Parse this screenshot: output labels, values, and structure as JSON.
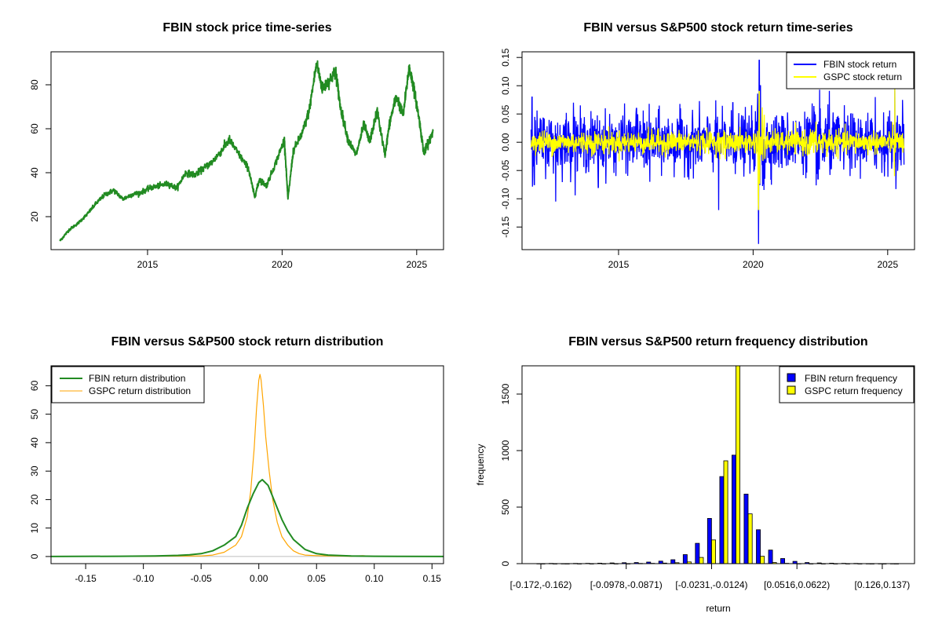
{
  "chart_data": [
    {
      "type": "line",
      "title": "FBIN stock price time-series",
      "xlabel": "",
      "ylabel": "",
      "xlim": [
        "2011-06-01",
        "2025-12-31"
      ],
      "ylim": [
        5,
        95
      ],
      "xticks": [
        {
          "v": "2015-01-01",
          "label": "2015"
        },
        {
          "v": "2020-01-01",
          "label": "2020"
        },
        {
          "v": "2025-01-01",
          "label": "2025"
        }
      ],
      "yticks": [
        20,
        40,
        60,
        80
      ],
      "colors": {
        "price": "#228B22"
      },
      "series": [
        {
          "x": [
            "2011-10-01",
            "2012-02-01",
            "2012-06-01",
            "2012-10-01",
            "2013-02-01",
            "2013-06-01",
            "2013-10-01",
            "2014-02-01",
            "2014-06-01",
            "2014-10-01",
            "2015-02-01",
            "2015-06-01",
            "2015-10-01",
            "2016-02-01",
            "2016-06-01",
            "2016-10-01",
            "2017-02-01",
            "2017-06-01",
            "2017-10-01",
            "2018-01-15",
            "2018-06-01",
            "2018-10-01",
            "2018-12-24",
            "2019-03-01",
            "2019-06-01",
            "2019-10-01",
            "2020-02-01",
            "2020-03-20",
            "2020-06-01",
            "2020-10-01",
            "2021-01-01",
            "2021-04-15",
            "2021-07-01",
            "2021-10-01",
            "2021-12-31",
            "2022-03-01",
            "2022-06-15",
            "2022-10-01",
            "2023-01-15",
            "2023-04-01",
            "2023-07-15",
            "2023-10-27",
            "2024-01-01",
            "2024-04-01",
            "2024-07-01",
            "2024-09-20",
            "2024-11-15",
            "2025-02-01",
            "2025-04-08",
            "2025-06-01",
            "2025-08-10"
          ],
          "values": [
            9,
            14,
            17,
            21,
            26,
            30,
            32,
            28,
            30,
            31,
            33,
            34,
            35,
            33,
            40,
            39,
            42,
            45,
            50,
            55,
            48,
            42,
            29,
            37,
            34,
            44,
            55,
            28,
            50,
            58,
            68,
            90,
            78,
            82,
            86,
            70,
            55,
            48,
            62,
            54,
            68,
            48,
            63,
            75,
            66,
            88,
            80,
            65,
            49,
            53,
            59
          ]
        }
      ]
    },
    {
      "type": "line",
      "title": "FBIN versus S&P500 stock return time-series",
      "xlabel": "",
      "ylabel": "",
      "xlim": [
        "2011-06-01",
        "2025-12-31"
      ],
      "ylim": [
        -0.19,
        0.16
      ],
      "xticks": [
        {
          "v": "2015-01-01",
          "label": "2015"
        },
        {
          "v": "2020-01-01",
          "label": "2020"
        },
        {
          "v": "2025-01-01",
          "label": "2025"
        }
      ],
      "yticks": [
        {
          "v": -0.15,
          "label": "-0.15"
        },
        {
          "v": -0.1,
          "label": "-0.10"
        },
        {
          "v": -0.05,
          "label": "-0.05"
        },
        {
          "v": 0,
          "label": "0.00"
        },
        {
          "v": 0.05,
          "label": "0.05"
        },
        {
          "v": 0.1,
          "label": "0.10"
        },
        {
          "v": 0.15,
          "label": "0.15"
        }
      ],
      "ytick_labels_rotated": true,
      "legend": "top-right",
      "colors": {
        "fbin": "#0000FF",
        "gspc": "#FFFF00"
      },
      "series": [
        {
          "name": "FBIN stock return",
          "typical_abs": 0.025,
          "spikes": [
            {
              "x": "2011-10-15",
              "v": 0.08
            },
            {
              "x": "2011-11-15",
              "v": -0.075
            },
            {
              "x": "2012-09-01",
              "v": -0.105
            },
            {
              "x": "2013-05-01",
              "v": 0.07
            },
            {
              "x": "2014-04-01",
              "v": -0.08
            },
            {
              "x": "2015-09-01",
              "v": 0.06
            },
            {
              "x": "2016-03-01",
              "v": -0.07
            },
            {
              "x": "2018-09-20",
              "v": -0.12
            },
            {
              "x": "2019-04-01",
              "v": 0.07
            },
            {
              "x": "2020-03-16",
              "v": -0.18
            },
            {
              "x": "2020-03-24",
              "v": 0.145
            },
            {
              "x": "2020-04-09",
              "v": 0.1
            },
            {
              "x": "2022-06-01",
              "v": -0.065
            },
            {
              "x": "2024-07-15",
              "v": 0.08
            },
            {
              "x": "2025-04-07",
              "v": -0.125
            },
            {
              "x": "2025-04-09",
              "v": 0.1
            },
            {
              "x": "2025-07-20",
              "v": 0.075
            }
          ]
        },
        {
          "name": "GSPC stock return",
          "typical_abs": 0.01,
          "spikes": [
            {
              "x": "2020-03-16",
              "v": -0.12
            },
            {
              "x": "2020-03-24",
              "v": 0.09
            },
            {
              "x": "2020-03-12",
              "v": -0.095
            },
            {
              "x": "2018-12-24",
              "v": -0.03
            },
            {
              "x": "2025-04-09",
              "v": 0.095
            },
            {
              "x": "2025-04-04",
              "v": -0.06
            }
          ]
        }
      ]
    },
    {
      "type": "line",
      "title": "FBIN versus S&P500 stock return distribution",
      "xlabel": "",
      "ylabel": "",
      "xlim": [
        -0.18,
        0.16
      ],
      "ylim": [
        -2.5,
        67
      ],
      "xticks": [
        {
          "v": -0.15,
          "label": "-0.15"
        },
        {
          "v": -0.1,
          "label": "-0.10"
        },
        {
          "v": -0.05,
          "label": "-0.05"
        },
        {
          "v": 0,
          "label": "0.00"
        },
        {
          "v": 0.05,
          "label": "0.05"
        },
        {
          "v": 0.1,
          "label": "0.10"
        },
        {
          "v": 0.15,
          "label": "0.15"
        }
      ],
      "yticks": [
        0,
        10,
        20,
        30,
        40,
        50,
        60
      ],
      "legend": "top-left",
      "colors": {
        "fbin": "#228B22",
        "gspc": "#FFA500",
        "baseline": "#BEBEBE"
      },
      "series": [
        {
          "name": "FBIN return distribution",
          "x": [
            -0.18,
            -0.12,
            -0.09,
            -0.07,
            -0.06,
            -0.05,
            -0.04,
            -0.03,
            -0.02,
            -0.015,
            -0.01,
            -0.005,
            0,
            0.003,
            0.008,
            0.012,
            0.016,
            0.02,
            0.025,
            0.03,
            0.04,
            0.05,
            0.06,
            0.08,
            0.1,
            0.12,
            0.16
          ],
          "values": [
            0,
            0.1,
            0.2,
            0.4,
            0.6,
            1,
            2,
            4,
            7,
            11,
            17,
            22,
            26,
            27,
            25,
            21,
            17,
            13,
            9,
            6,
            2.5,
            1,
            0.5,
            0.2,
            0.1,
            0.05,
            0
          ]
        },
        {
          "name": "GSPC return distribution",
          "x": [
            -0.12,
            -0.05,
            -0.04,
            -0.03,
            -0.02,
            -0.015,
            -0.01,
            -0.007,
            -0.004,
            -0.002,
            0,
            0.001,
            0.002,
            0.004,
            0.006,
            0.009,
            0.012,
            0.016,
            0.02,
            0.025,
            0.03,
            0.035,
            0.04,
            0.05,
            0.06,
            0.08,
            0.09,
            0.1
          ],
          "values": [
            0,
            0.2,
            0.5,
            1.5,
            4,
            7,
            14,
            23,
            38,
            52,
            62,
            64,
            62,
            53,
            42,
            30,
            20,
            12,
            7,
            4,
            2,
            1,
            0.5,
            0.3,
            0.2,
            0.1,
            0.3,
            0
          ]
        }
      ]
    },
    {
      "type": "bar",
      "title": "FBIN versus S&P500 return frequency distribution",
      "xlabel": "return",
      "ylabel": "frequency",
      "ylim": [
        0,
        1750
      ],
      "yticks": [
        0,
        500,
        1000,
        1500
      ],
      "legend": "top-right",
      "colors": {
        "fbin": "#0000FF",
        "gspc": "#FFFF00"
      },
      "categories": [
        "[-0.172,-0.162)",
        "[-0.162,-0.151)",
        "[-0.151,-0.14)",
        "[-0.14,-0.13)",
        "[-0.13,-0.119)",
        "[-0.119,-0.108)",
        "[-0.108,-0.0978)",
        "[-0.0978,-0.0871)",
        "[-0.0871,-0.0765)",
        "[-0.0765,-0.0658)",
        "[-0.0658,-0.0551)",
        "[-0.0551,-0.0445)",
        "[-0.0445,-0.0338)",
        "[-0.0338,-0.0231)",
        "[-0.0231,-0.0124)",
        "[-0.0124,-0.0018)",
        "[-0.0018,0.0089)",
        "[0.0089,0.0196)",
        "[0.0196,0.0302)",
        "[0.0302,0.0409)",
        "[0.0409,0.0516)",
        "[0.0516,0.0622)",
        "[0.0622,0.0729)",
        "[0.0729,0.0836)",
        "[0.0836,0.0942)",
        "[0.0942,0.105)",
        "[0.105,0.116)",
        "[0.116,0.126)",
        "[0.126,0.137)",
        "[0.137,0.148)"
      ],
      "shown_category_labels": [
        "[-0.172,-0.162)",
        "[-0.0978,-0.0871)",
        "[-0.0231,-0.0124)",
        "[0.0516,0.0622)",
        "[0.126,0.137)"
      ],
      "series": [
        {
          "name": "FBIN return frequency",
          "values": [
            1,
            2,
            1,
            2,
            3,
            4,
            6,
            8,
            10,
            14,
            22,
            35,
            80,
            180,
            400,
            770,
            960,
            615,
            300,
            120,
            45,
            20,
            10,
            6,
            4,
            3,
            2,
            1,
            1,
            1
          ]
        },
        {
          "name": "GSPC return frequency",
          "values": [
            0,
            0,
            0,
            0,
            0,
            0,
            0,
            0,
            2,
            3,
            5,
            8,
            15,
            55,
            210,
            910,
            1750,
            440,
            65,
            10,
            3,
            1,
            0,
            0,
            0,
            0,
            0,
            0,
            0,
            0
          ]
        }
      ]
    }
  ]
}
